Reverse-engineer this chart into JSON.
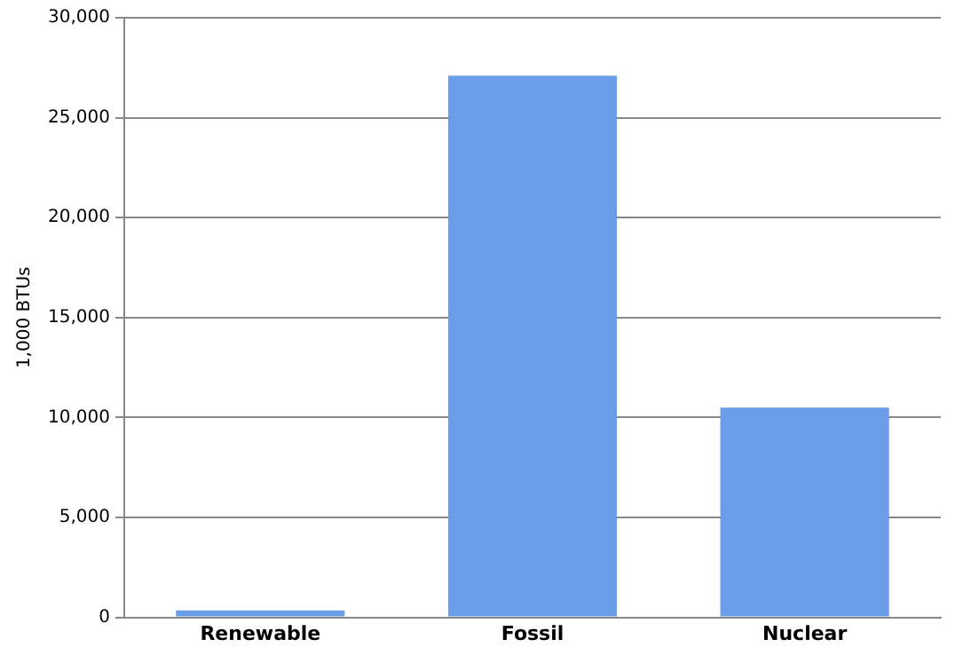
{
  "chart_data": {
    "type": "bar",
    "ylabel": "1,000 BTUs",
    "categories": [
      "Renewable",
      "Fossil",
      "Nuclear"
    ],
    "values": [
      350,
      27100,
      10500
    ],
    "color": "#6a9ee8",
    "ylim": [
      0,
      30000
    ],
    "yticks": [
      {
        "value": 0,
        "label": "0"
      },
      {
        "value": 5000,
        "label": "5,000"
      },
      {
        "value": 10000,
        "label": "10,000"
      },
      {
        "value": 15000,
        "label": "15,000"
      },
      {
        "value": 20000,
        "label": "20,000"
      },
      {
        "value": 25000,
        "label": "25,000"
      },
      {
        "value": 30000,
        "label": "30,000"
      }
    ],
    "grid": "y"
  }
}
